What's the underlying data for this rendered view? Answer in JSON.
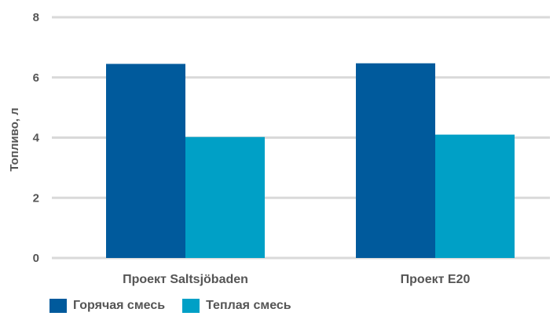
{
  "chart_data": {
    "type": "bar",
    "categories": [
      "Проект Saltsjöbaden",
      "Проект E20"
    ],
    "series": [
      {
        "name": "Горячая смесь",
        "values": [
          6.45,
          6.47
        ],
        "color": "#005a9c"
      },
      {
        "name": "Теплая смесь",
        "values": [
          4.02,
          4.1
        ],
        "color": "#00a0c6"
      }
    ],
    "title": "",
    "xlabel": "",
    "ylabel": "Топливо, л",
    "ylim": [
      0,
      8
    ],
    "yticks": [
      0,
      2,
      4,
      6,
      8
    ],
    "grid": true,
    "legend_position": "bottom-left",
    "grid_color": "#d9d9d9"
  }
}
